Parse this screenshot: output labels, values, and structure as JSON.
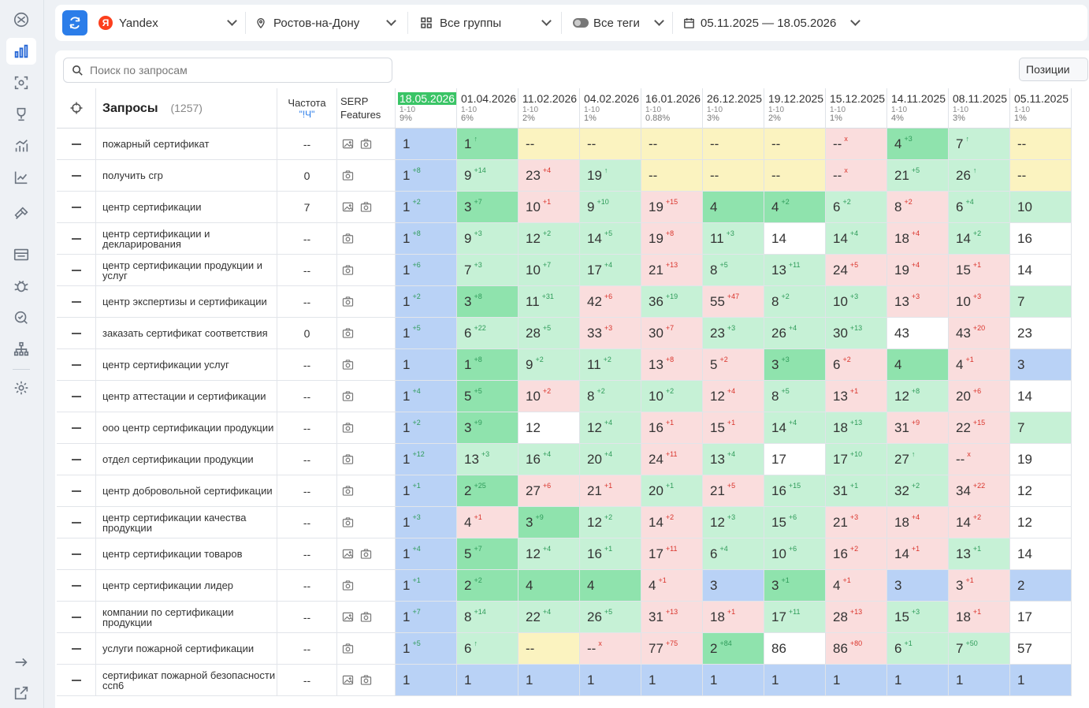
{
  "topbar": {
    "search_engine": "Yandex",
    "region": "Ростов-на-Дону",
    "groups": "Все группы",
    "tags": "Все теги",
    "date_range": "05.11.2025 — 18.05.2026"
  },
  "search": {
    "placeholder": "Поиск по запросам"
  },
  "positions_button": "Позиции",
  "table": {
    "queries_title": "Запросы",
    "queries_count": "(1257)",
    "freq_title": "Частота",
    "freq_sub": "\"!Ч\"",
    "serp_title": "SERP",
    "serp_sub": "Features",
    "dates": [
      {
        "date": "18.05.2026",
        "range": "1-10",
        "pct": "9%"
      },
      {
        "date": "01.04.2026",
        "range": "1-10",
        "pct": "6%"
      },
      {
        "date": "11.02.2026",
        "range": "1-10",
        "pct": "2%"
      },
      {
        "date": "04.02.2026",
        "range": "1-10",
        "pct": "1%"
      },
      {
        "date": "16.01.2026",
        "range": "1-10",
        "pct": "0.88%"
      },
      {
        "date": "26.12.2025",
        "range": "1-10",
        "pct": "3%"
      },
      {
        "date": "19.12.2025",
        "range": "1-10",
        "pct": "2%"
      },
      {
        "date": "15.12.2025",
        "range": "1-10",
        "pct": "1%"
      },
      {
        "date": "14.11.2025",
        "range": "1-10",
        "pct": "4%"
      },
      {
        "date": "08.11.2025",
        "range": "1-10",
        "pct": "3%"
      },
      {
        "date": "05.11.2025",
        "range": "1-10",
        "pct": "1%"
      }
    ],
    "rows": [
      {
        "q": "пожарный сертификат",
        "f": "--",
        "serp": [
          "img",
          "cam"
        ],
        "cells": [
          [
            "1",
            "",
            ""
          ],
          [
            "1",
            "↑",
            "up"
          ],
          [
            "--",
            "",
            ""
          ],
          [
            "--",
            "",
            ""
          ],
          [
            "--",
            "",
            ""
          ],
          [
            "--",
            "",
            ""
          ],
          [
            "--",
            "",
            ""
          ],
          [
            "--",
            "x",
            "x"
          ],
          [
            "4",
            "+3",
            "up"
          ],
          [
            "7",
            "↑",
            "up"
          ],
          [
            "--",
            "",
            ""
          ]
        ]
      },
      {
        "q": "получить сгр",
        "f": "0",
        "serp": [
          "cam"
        ],
        "cells": [
          [
            "1",
            "+8",
            "up"
          ],
          [
            "9",
            "+14",
            "up"
          ],
          [
            "23",
            "+4",
            "dn"
          ],
          [
            "19",
            "↑",
            "up"
          ],
          [
            "--",
            "",
            ""
          ],
          [
            "--",
            "",
            ""
          ],
          [
            "--",
            "",
            ""
          ],
          [
            "--",
            "x",
            "x"
          ],
          [
            "21",
            "+5",
            "up"
          ],
          [
            "26",
            "↑",
            "up"
          ],
          [
            "--",
            "",
            ""
          ]
        ]
      },
      {
        "q": "центр сертификации",
        "f": "7",
        "serp": [
          "img",
          "cam"
        ],
        "cells": [
          [
            "1",
            "+2",
            "up"
          ],
          [
            "3",
            "+7",
            "up"
          ],
          [
            "10",
            "+1",
            "dn"
          ],
          [
            "9",
            "+10",
            "up"
          ],
          [
            "19",
            "+15",
            "dn"
          ],
          [
            "4",
            "",
            ""
          ],
          [
            "4",
            "+2",
            "up"
          ],
          [
            "6",
            "+2",
            "up"
          ],
          [
            "8",
            "+2",
            "dn"
          ],
          [
            "6",
            "+4",
            "up"
          ],
          [
            "10",
            "",
            ""
          ]
        ]
      },
      {
        "q": "центр сертификации и декларирования",
        "f": "--",
        "serp": [
          "cam"
        ],
        "cells": [
          [
            "1",
            "+8",
            "up"
          ],
          [
            "9",
            "+3",
            "up"
          ],
          [
            "12",
            "+2",
            "up"
          ],
          [
            "14",
            "+5",
            "up"
          ],
          [
            "19",
            "+8",
            "dn"
          ],
          [
            "11",
            "+3",
            "up"
          ],
          [
            "14",
            "",
            ""
          ],
          [
            "14",
            "+4",
            "up"
          ],
          [
            "18",
            "+4",
            "dn"
          ],
          [
            "14",
            "+2",
            "up"
          ],
          [
            "16",
            "",
            ""
          ]
        ]
      },
      {
        "q": "центр сертификации продукции и услуг",
        "f": "--",
        "serp": [
          "cam"
        ],
        "cells": [
          [
            "1",
            "+6",
            "up"
          ],
          [
            "7",
            "+3",
            "up"
          ],
          [
            "10",
            "+7",
            "up"
          ],
          [
            "17",
            "+4",
            "up"
          ],
          [
            "21",
            "+13",
            "dn"
          ],
          [
            "8",
            "+5",
            "up"
          ],
          [
            "13",
            "+11",
            "up"
          ],
          [
            "24",
            "+5",
            "dn"
          ],
          [
            "19",
            "+4",
            "dn"
          ],
          [
            "15",
            "+1",
            "dn"
          ],
          [
            "14",
            "",
            ""
          ]
        ]
      },
      {
        "q": "центр экспертизы и сертификации",
        "f": "--",
        "serp": [
          "cam"
        ],
        "cells": [
          [
            "1",
            "+2",
            "up"
          ],
          [
            "3",
            "+8",
            "up"
          ],
          [
            "11",
            "+31",
            "up"
          ],
          [
            "42",
            "+6",
            "dn"
          ],
          [
            "36",
            "+19",
            "up"
          ],
          [
            "55",
            "+47",
            "dn"
          ],
          [
            "8",
            "+2",
            "up"
          ],
          [
            "10",
            "+3",
            "up"
          ],
          [
            "13",
            "+3",
            "dn"
          ],
          [
            "10",
            "+3",
            "dn"
          ],
          [
            "7",
            "",
            ""
          ]
        ]
      },
      {
        "q": "заказать сертификат соответствия",
        "f": "0",
        "serp": [
          "cam"
        ],
        "cells": [
          [
            "1",
            "+5",
            "up"
          ],
          [
            "6",
            "+22",
            "up"
          ],
          [
            "28",
            "+5",
            "up"
          ],
          [
            "33",
            "+3",
            "dn"
          ],
          [
            "30",
            "+7",
            "dn"
          ],
          [
            "23",
            "+3",
            "up"
          ],
          [
            "26",
            "+4",
            "up"
          ],
          [
            "30",
            "+13",
            "up"
          ],
          [
            "43",
            "",
            ""
          ],
          [
            "43",
            "+20",
            "dn"
          ],
          [
            "23",
            "",
            ""
          ]
        ]
      },
      {
        "q": "центр сертификации услуг",
        "f": "--",
        "serp": [
          "cam"
        ],
        "cells": [
          [
            "1",
            "",
            ""
          ],
          [
            "1",
            "+8",
            "up"
          ],
          [
            "9",
            "+2",
            "up"
          ],
          [
            "11",
            "+2",
            "up"
          ],
          [
            "13",
            "+8",
            "dn"
          ],
          [
            "5",
            "+2",
            "dn"
          ],
          [
            "3",
            "+3",
            "up"
          ],
          [
            "6",
            "+2",
            "dn"
          ],
          [
            "4",
            "",
            ""
          ],
          [
            "4",
            "+1",
            "dn"
          ],
          [
            "3",
            "",
            ""
          ]
        ]
      },
      {
        "q": "центр аттестации и сертификации",
        "f": "--",
        "serp": [
          "cam"
        ],
        "cells": [
          [
            "1",
            "+4",
            "up"
          ],
          [
            "5",
            "+5",
            "up"
          ],
          [
            "10",
            "+2",
            "dn"
          ],
          [
            "8",
            "+2",
            "up"
          ],
          [
            "10",
            "+2",
            "up"
          ],
          [
            "12",
            "+4",
            "dn"
          ],
          [
            "8",
            "+5",
            "up"
          ],
          [
            "13",
            "+1",
            "dn"
          ],
          [
            "12",
            "+8",
            "up"
          ],
          [
            "20",
            "+6",
            "dn"
          ],
          [
            "14",
            "",
            ""
          ]
        ]
      },
      {
        "q": "ооо центр сертификации продукции",
        "f": "--",
        "serp": [
          "cam"
        ],
        "cells": [
          [
            "1",
            "+2",
            "up"
          ],
          [
            "3",
            "+9",
            "up"
          ],
          [
            "12",
            "",
            ""
          ],
          [
            "12",
            "+4",
            "up"
          ],
          [
            "16",
            "+1",
            "dn"
          ],
          [
            "15",
            "+1",
            "dn"
          ],
          [
            "14",
            "+4",
            "up"
          ],
          [
            "18",
            "+13",
            "up"
          ],
          [
            "31",
            "+9",
            "dn"
          ],
          [
            "22",
            "+15",
            "dn"
          ],
          [
            "7",
            "",
            ""
          ]
        ]
      },
      {
        "q": "отдел сертификации продукции",
        "f": "--",
        "serp": [
          "cam"
        ],
        "cells": [
          [
            "1",
            "+12",
            "up"
          ],
          [
            "13",
            "+3",
            "up"
          ],
          [
            "16",
            "+4",
            "up"
          ],
          [
            "20",
            "+4",
            "up"
          ],
          [
            "24",
            "+11",
            "dn"
          ],
          [
            "13",
            "+4",
            "up"
          ],
          [
            "17",
            "",
            ""
          ],
          [
            "17",
            "+10",
            "up"
          ],
          [
            "27",
            "↑",
            "up"
          ],
          [
            "--",
            "x",
            "x"
          ],
          [
            "19",
            "",
            ""
          ]
        ]
      },
      {
        "q": "центр добровольной сертификации",
        "f": "--",
        "serp": [
          "cam"
        ],
        "cells": [
          [
            "1",
            "+1",
            "up"
          ],
          [
            "2",
            "+25",
            "up"
          ],
          [
            "27",
            "+6",
            "dn"
          ],
          [
            "21",
            "+1",
            "dn"
          ],
          [
            "20",
            "+1",
            "up"
          ],
          [
            "21",
            "+5",
            "dn"
          ],
          [
            "16",
            "+15",
            "up"
          ],
          [
            "31",
            "+1",
            "up"
          ],
          [
            "32",
            "+2",
            "up"
          ],
          [
            "34",
            "+22",
            "dn"
          ],
          [
            "12",
            "",
            ""
          ]
        ]
      },
      {
        "q": "центр сертификации качества продукции",
        "f": "--",
        "serp": [
          "cam"
        ],
        "cells": [
          [
            "1",
            "+3",
            "up"
          ],
          [
            "4",
            "+1",
            "dn"
          ],
          [
            "3",
            "+9",
            "up"
          ],
          [
            "12",
            "+2",
            "up"
          ],
          [
            "14",
            "+2",
            "dn"
          ],
          [
            "12",
            "+3",
            "up"
          ],
          [
            "15",
            "+6",
            "up"
          ],
          [
            "21",
            "+3",
            "dn"
          ],
          [
            "18",
            "+4",
            "dn"
          ],
          [
            "14",
            "+2",
            "dn"
          ],
          [
            "12",
            "",
            ""
          ]
        ]
      },
      {
        "q": "центр сертификации товаров",
        "f": "--",
        "serp": [
          "img",
          "cam"
        ],
        "cells": [
          [
            "1",
            "+4",
            "up"
          ],
          [
            "5",
            "+7",
            "up"
          ],
          [
            "12",
            "+4",
            "up"
          ],
          [
            "16",
            "+1",
            "up"
          ],
          [
            "17",
            "+11",
            "dn"
          ],
          [
            "6",
            "+4",
            "up"
          ],
          [
            "10",
            "+6",
            "up"
          ],
          [
            "16",
            "+2",
            "dn"
          ],
          [
            "14",
            "+1",
            "dn"
          ],
          [
            "13",
            "+1",
            "up"
          ],
          [
            "14",
            "",
            ""
          ]
        ]
      },
      {
        "q": "центр сертификации лидер",
        "f": "--",
        "serp": [
          "cam"
        ],
        "cells": [
          [
            "1",
            "+1",
            "up"
          ],
          [
            "2",
            "+2",
            "up"
          ],
          [
            "4",
            "",
            ""
          ],
          [
            "4",
            "",
            ""
          ],
          [
            "4",
            "+1",
            "dn"
          ],
          [
            "3",
            "",
            ""
          ],
          [
            "3",
            "+1",
            "up"
          ],
          [
            "4",
            "+1",
            "dn"
          ],
          [
            "3",
            "",
            ""
          ],
          [
            "3",
            "+1",
            "dn"
          ],
          [
            "2",
            "",
            ""
          ]
        ]
      },
      {
        "q": "компании по сертификации продукции",
        "f": "--",
        "serp": [
          "img",
          "cam"
        ],
        "cells": [
          [
            "1",
            "+7",
            "up"
          ],
          [
            "8",
            "+14",
            "up"
          ],
          [
            "22",
            "+4",
            "up"
          ],
          [
            "26",
            "+5",
            "up"
          ],
          [
            "31",
            "+13",
            "dn"
          ],
          [
            "18",
            "+1",
            "dn"
          ],
          [
            "17",
            "+11",
            "up"
          ],
          [
            "28",
            "+13",
            "dn"
          ],
          [
            "15",
            "+3",
            "up"
          ],
          [
            "18",
            "+1",
            "dn"
          ],
          [
            "17",
            "",
            ""
          ]
        ]
      },
      {
        "q": "услуги пожарной сертификации",
        "f": "--",
        "serp": [
          "cam"
        ],
        "cells": [
          [
            "1",
            "+5",
            "up"
          ],
          [
            "6",
            "↑",
            "up"
          ],
          [
            "--",
            "",
            ""
          ],
          [
            "--",
            "x",
            "x"
          ],
          [
            "77",
            "+75",
            "dn"
          ],
          [
            "2",
            "+84",
            "up"
          ],
          [
            "86",
            "",
            ""
          ],
          [
            "86",
            "+80",
            "dn"
          ],
          [
            "6",
            "+1",
            "up"
          ],
          [
            "7",
            "+50",
            "up"
          ],
          [
            "57",
            "",
            ""
          ]
        ]
      },
      {
        "q": "сертификат пожарной безопасности ссп6",
        "f": "--",
        "serp": [
          "img",
          "cam"
        ],
        "cells": [
          [
            "1",
            "",
            ""
          ],
          [
            "1",
            "",
            ""
          ],
          [
            "1",
            "",
            ""
          ],
          [
            "1",
            "",
            ""
          ],
          [
            "1",
            "",
            ""
          ],
          [
            "1",
            "",
            ""
          ],
          [
            "1",
            "",
            ""
          ],
          [
            "1",
            "",
            ""
          ],
          [
            "1",
            "",
            ""
          ],
          [
            "1",
            "",
            ""
          ],
          [
            "1",
            "",
            ""
          ]
        ]
      }
    ]
  },
  "colors": {
    "accent": "#2b7de9",
    "top": "#b9d2f6",
    "good": "#c6f1d6",
    "better": "#8fe3ad",
    "worse": "#fadddd",
    "missing": "#fbf3c0",
    "neutral": "#ffffff",
    "current": "#3ac466"
  }
}
